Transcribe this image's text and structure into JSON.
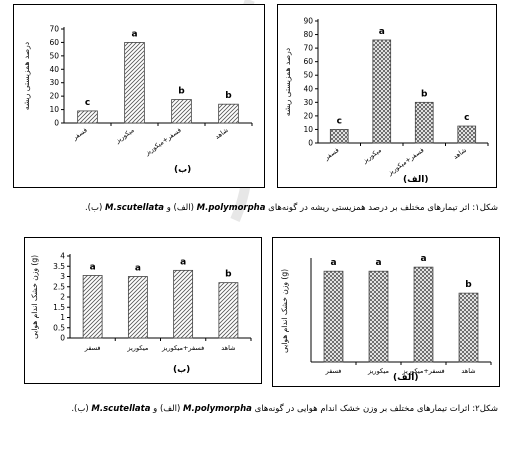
{
  "colors": {
    "bar_fill": "#ffffff",
    "bar_stroke": "#444444",
    "hatch": "#555555",
    "axis": "#000000",
    "watermark": "#bbbbbb"
  },
  "figure1": {
    "caption_before": "شکل۱: اثر تیمارهای مختلف بر درصد همزیستی ریشه در گونه‌های",
    "species_a": "M.polymorpha",
    "caption_mid": "(الف) و",
    "species_b": "M.scutellata",
    "caption_after": "(ب)."
  },
  "figure2": {
    "caption_before": "شکل۲: اثرات تیمارهای مختلف بر وزن خشک اندام هوایی در گونه‌های",
    "species_a": "M.polymorpha",
    "caption_mid": "(الف) و",
    "species_b": "M.scutellata",
    "caption_after": "(ب)."
  },
  "chart_data": [
    {
      "id": "fig1-b",
      "type": "bar",
      "panel_label": "(ب)",
      "ylabel": "درصد همزیستی ریشه",
      "xlabel": "",
      "ylim": [
        0,
        70
      ],
      "yticks": [
        0,
        10,
        20,
        30,
        40,
        50,
        60,
        70
      ],
      "categories": [
        "فسفر",
        "میکوریز",
        "فسفر+میکوریز",
        "شاهد"
      ],
      "values": [
        9,
        60,
        17.5,
        14
      ],
      "letters": [
        "c",
        "a",
        "b",
        "b"
      ],
      "hatch": "diag"
    },
    {
      "id": "fig1-alef",
      "type": "bar",
      "panel_label": "(الف)",
      "ylabel": "درصد همزیستی ریشه",
      "xlabel": "",
      "ylim": [
        0,
        90
      ],
      "yticks": [
        0,
        10,
        20,
        30,
        40,
        50,
        60,
        70,
        80,
        90
      ],
      "categories": [
        "فسفر",
        "میکوریز",
        "فسفر+میکوریز",
        "شاهد"
      ],
      "values": [
        10,
        76,
        30,
        12.5
      ],
      "letters": [
        "c",
        "a",
        "b",
        "c"
      ],
      "hatch": "cross"
    },
    {
      "id": "fig2-b",
      "type": "bar",
      "panel_label": "(ب)",
      "ylabel": "وزن خشک اندام هوایی (g)",
      "xlabel": "",
      "ylim": [
        0,
        4
      ],
      "yticks": [
        0,
        0.5,
        1,
        1.5,
        2,
        2.5,
        3,
        3.5,
        4
      ],
      "categories": [
        "فسفر",
        "میکوریز",
        "فسفر+میکوریز",
        "شاهد"
      ],
      "values": [
        3.05,
        3.0,
        3.3,
        2.7
      ],
      "letters": [
        "a",
        "a",
        "a",
        "b"
      ],
      "hatch": "diag"
    },
    {
      "id": "fig2-alef",
      "type": "bar",
      "panel_label": "(الف)",
      "ylabel": "وزن خشک اندام هوایی (g)",
      "xlabel": "",
      "ylim": [
        0,
        20
      ],
      "yticks": [],
      "categories": [
        "فسفر",
        "میکوریز",
        "فسفر+میکوریز",
        "شاهد"
      ],
      "values": [
        17.8,
        17.8,
        18.6,
        13.5
      ],
      "letters": [
        "a",
        "a",
        "a",
        "b"
      ],
      "hatch": "cross"
    }
  ]
}
